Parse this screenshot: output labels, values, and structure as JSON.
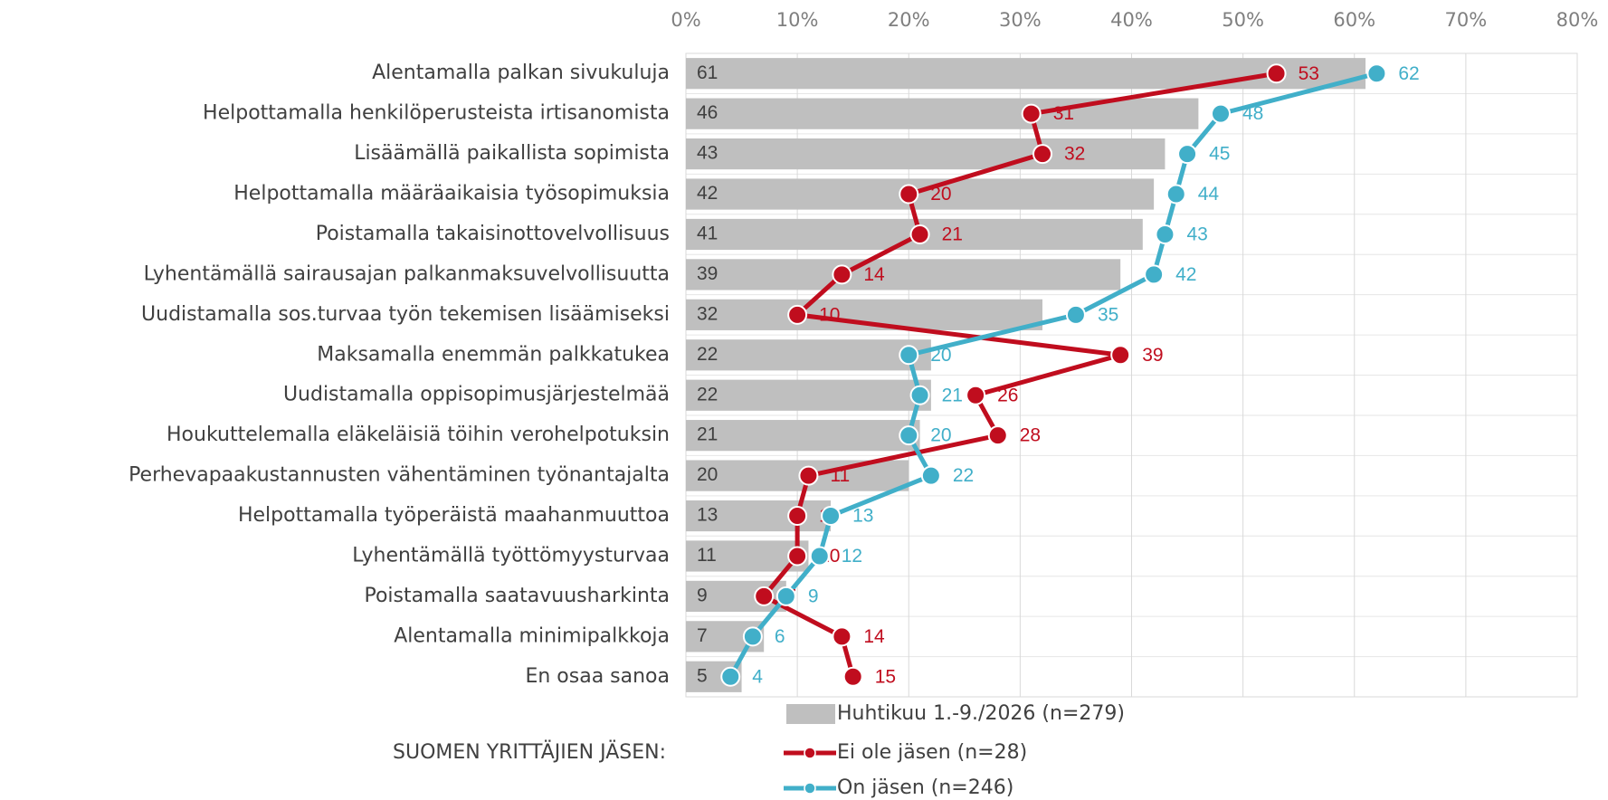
{
  "chart_data": {
    "type": "bar",
    "orientation": "horizontal",
    "categories": [
      "Alentamalla palkan sivukuluja",
      "Helpottamalla henkilöperusteista irtisanomista",
      "Lisäämällä paikallista sopimista",
      "Helpottamalla määräaikaisia työsopimuksia",
      "Poistamalla takaisinottovelvollisuus",
      "Lyhentämällä sairausajan palkanmaksuvelvollisuutta",
      "Uudistamalla sos.turvaa työn tekemisen lisäämiseksi",
      "Maksamalla enemmän palkkatukea",
      "Uudistamalla oppisopimusjärjestelmää",
      "Houkuttelemalla eläkeläisiä töihin verohelpotuksin",
      "Perhevapaakustannusten vähentäminen työnantajalta",
      "Helpottamalla työperäistä maahanmuuttoa",
      "Lyhentämällä työttömyysturvaa",
      "Poistamalla saatavuusharkinta",
      "Alentamalla minimipalkkoja",
      "En osaa sanoa"
    ],
    "series": [
      {
        "name": "Huhtikuu 1.-9./2026 (n=279)",
        "type": "bar",
        "color": "#bfbfbf",
        "values": [
          61,
          46,
          43,
          42,
          41,
          39,
          32,
          22,
          22,
          21,
          20,
          13,
          11,
          9,
          7,
          5
        ]
      },
      {
        "name": "Ei ole jäsen (n=28)",
        "type": "line",
        "color": "#c00d1e",
        "values": [
          53,
          31,
          32,
          20,
          21,
          14,
          10,
          39,
          26,
          28,
          11,
          10,
          10,
          7,
          14,
          15
        ]
      },
      {
        "name": "On jäsen (n=246)",
        "type": "line",
        "color": "#41afc9",
        "values": [
          62,
          48,
          45,
          44,
          43,
          42,
          35,
          20,
          21,
          20,
          22,
          13,
          12,
          9,
          6,
          4
        ]
      }
    ],
    "legend_title": "SUOMEN YRITTÄJIEN JÄSEN:",
    "xlim": [
      0,
      80
    ],
    "xticks": [
      {
        "value": 0,
        "label": "0%"
      },
      {
        "value": 10,
        "label": "10%"
      },
      {
        "value": 20,
        "label": "20%"
      },
      {
        "value": 30,
        "label": "30%"
      },
      {
        "value": 40,
        "label": "40%"
      },
      {
        "value": 50,
        "label": "50%"
      },
      {
        "value": 60,
        "label": "60%"
      },
      {
        "value": 70,
        "label": "70%"
      },
      {
        "value": 80,
        "label": "80%"
      }
    ],
    "grid": true
  }
}
